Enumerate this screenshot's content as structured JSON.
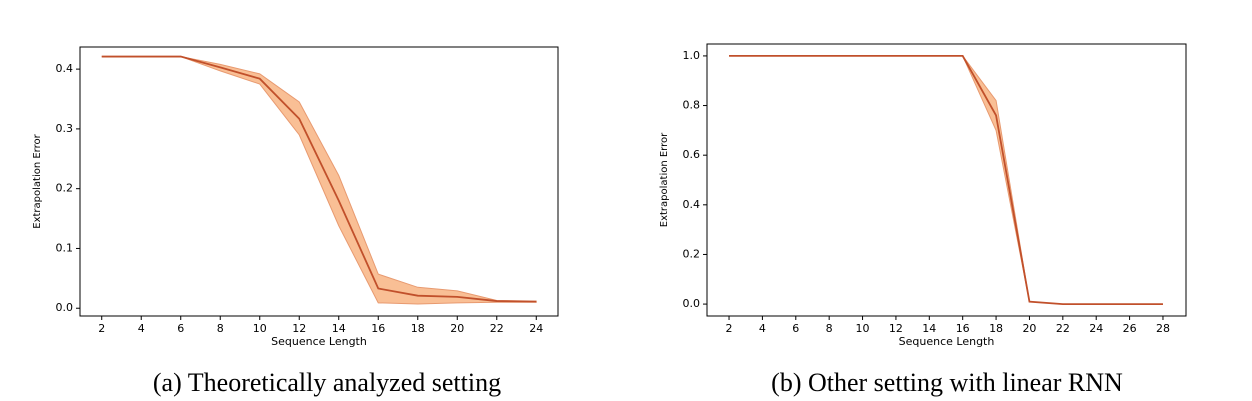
{
  "chart_data": [
    {
      "type": "line",
      "caption": "(a) Theoretically analyzed setting",
      "xlabel": "Sequence Length",
      "ylabel": "Extrapolation Error",
      "x": [
        2,
        4,
        6,
        8,
        10,
        12,
        14,
        16,
        18,
        20,
        22,
        24
      ],
      "series": [
        {
          "color": "#c1502b",
          "band_color": "#f9bf95",
          "values": [
            0.421,
            0.421,
            0.421,
            0.403,
            0.384,
            0.317,
            0.18,
            0.033,
            0.021,
            0.019,
            0.012,
            0.011
          ],
          "upper": [
            0.421,
            0.421,
            0.421,
            0.408,
            0.392,
            0.345,
            0.222,
            0.057,
            0.035,
            0.029,
            0.013,
            0.012
          ],
          "lower": [
            0.421,
            0.421,
            0.421,
            0.397,
            0.375,
            0.29,
            0.138,
            0.009,
            0.007,
            0.009,
            0.01,
            0.01
          ]
        }
      ],
      "xlim": [
        0.9,
        25.1
      ],
      "xticks": [
        2,
        4,
        6,
        8,
        10,
        12,
        14,
        16,
        18,
        20,
        22,
        24
      ],
      "ylim": [
        -0.013,
        0.437
      ],
      "yticks": [
        {
          "value": 0,
          "label": "0.0"
        },
        0.1,
        0.2,
        0.3,
        0.4
      ]
    },
    {
      "type": "line",
      "caption": "(b) Other setting with linear RNN",
      "xlabel": "Sequence Length",
      "ylabel": "Extrapolation Error",
      "x": [
        2,
        4,
        6,
        8,
        10,
        12,
        14,
        16,
        18,
        20,
        22,
        24,
        26,
        28
      ],
      "series": [
        {
          "color": "#c1502b",
          "band_color": "#f9bf95",
          "values": [
            1,
            1,
            1,
            1,
            1,
            1,
            1,
            1,
            0.76,
            0.01,
            0,
            0,
            0,
            0
          ],
          "upper": [
            1,
            1,
            1,
            1,
            1,
            1,
            1,
            1,
            0.82,
            0.01,
            0,
            0,
            0,
            0
          ],
          "lower": [
            1,
            1,
            1,
            1,
            1,
            1,
            1,
            1,
            0.7,
            0.01,
            0,
            0,
            0,
            0
          ]
        }
      ],
      "xlim": [
        0.68,
        29.38
      ],
      "xticks": [
        2,
        4,
        6,
        8,
        10,
        12,
        14,
        16,
        18,
        20,
        22,
        24,
        26,
        28
      ],
      "ylim": [
        -0.048,
        1.048
      ],
      "yticks": [
        {
          "value": 0,
          "label": "0.0"
        },
        0.2,
        0.4,
        0.6,
        0.8,
        {
          "value": 1,
          "label": "1.0"
        }
      ]
    }
  ]
}
